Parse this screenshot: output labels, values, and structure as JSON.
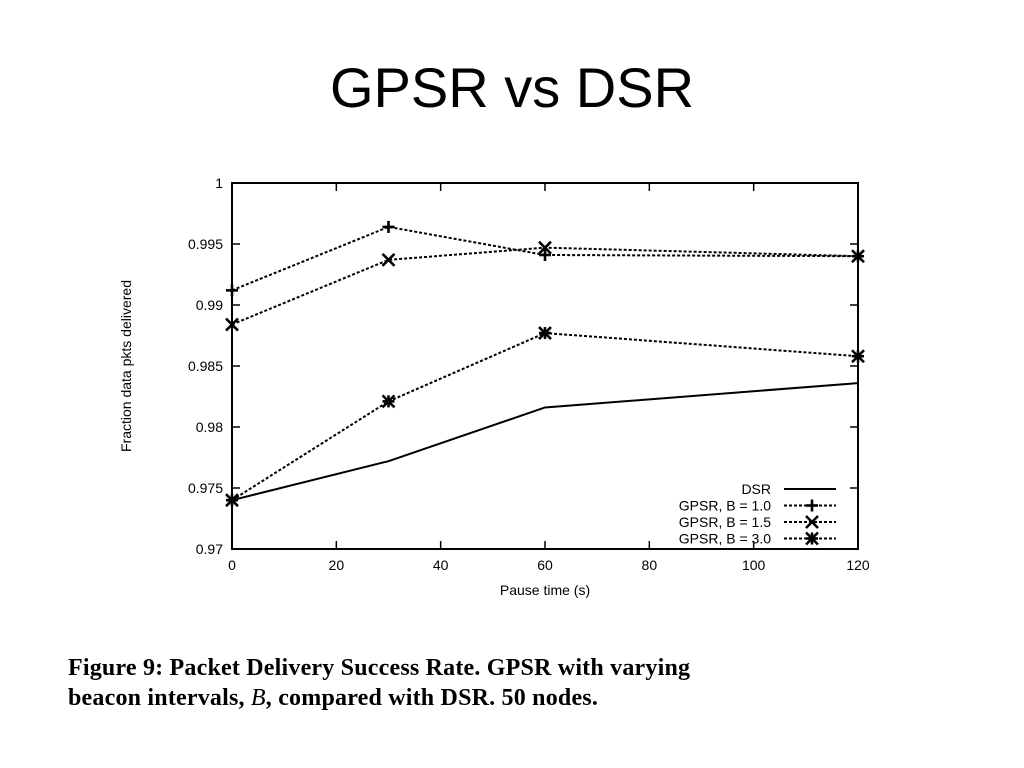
{
  "slide": {
    "title": "GPSR vs DSR"
  },
  "caption": {
    "part1": "Figure 9:  Packet Delivery Success Rate.  GPSR with varying",
    "part2a": "beacon intervals, ",
    "part2var": "B",
    "part2b": ", compared with DSR. 50 nodes."
  },
  "chart_data": {
    "type": "line",
    "title": "",
    "xlabel": "Pause time (s)",
    "ylabel": "Fraction data pkts delivered",
    "xlim": [
      0,
      120
    ],
    "ylim": [
      0.97,
      1.0
    ],
    "xticks": [
      0,
      20,
      40,
      60,
      80,
      100,
      120
    ],
    "xtick_labels": [
      "0",
      "20",
      "40",
      "60",
      "80",
      "100",
      "120"
    ],
    "yticks": [
      0.97,
      0.975,
      0.98,
      0.985,
      0.99,
      0.995,
      1.0
    ],
    "ytick_labels": [
      "0.97",
      "0.975",
      "0.98",
      "0.985",
      "0.99",
      "0.995",
      "1"
    ],
    "grid": false,
    "legend_position": "bottom-right",
    "series": [
      {
        "name": "DSR",
        "style": "solid",
        "marker": "none",
        "x": [
          0,
          30,
          60,
          120
        ],
        "y": [
          0.974,
          0.9772,
          0.9816,
          0.9836
        ]
      },
      {
        "name": "GPSR, B = 1.0",
        "style": "dotted",
        "marker": "plus",
        "x": [
          0,
          30,
          60,
          120
        ],
        "y": [
          0.9912,
          0.9964,
          0.9941,
          0.994
        ]
      },
      {
        "name": "GPSR, B = 1.5",
        "style": "dotted",
        "marker": "cross",
        "x": [
          0,
          30,
          60,
          120
        ],
        "y": [
          0.9884,
          0.9937,
          0.9947,
          0.994
        ]
      },
      {
        "name": "GPSR, B = 3.0",
        "style": "dotted",
        "marker": "star",
        "x": [
          0,
          30,
          60,
          120
        ],
        "y": [
          0.974,
          0.9821,
          0.9877,
          0.9858
        ]
      }
    ]
  }
}
